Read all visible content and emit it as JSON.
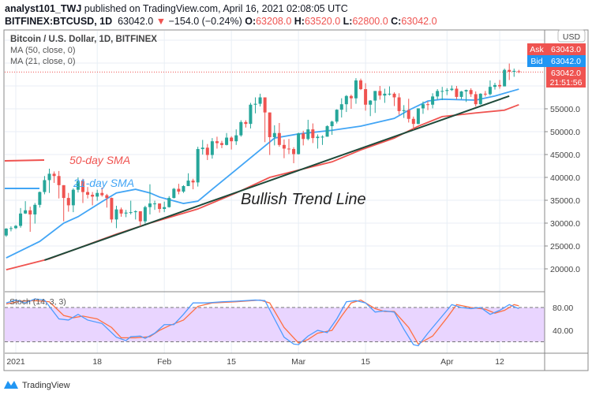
{
  "header": {
    "author": "analyst101_TWJ",
    "published": " published on TradingView.com, April 16, 2021 02:08:05 UTC",
    "symbol": "BITFINEX:BTCUSD, 1D",
    "last": "63042.0",
    "change": "−154.0 (−0.24%)",
    "o_label": "O:",
    "o": "63208.0",
    "h_label": "H:",
    "h": "63520.0",
    "l_label": "L:",
    "l": "62800.0",
    "c_label": "C:",
    "c": "63042.0"
  },
  "legend": {
    "title": "Bitcoin / U.S. Dollar, 1D, BITFINEX",
    "ma50": "MA (50, close, 0)",
    "ma21": "MA (21, close, 0)"
  },
  "annotations": {
    "sma50": "50-day SMA",
    "sma21": "21-day SMA",
    "trend": "Bullish Trend Line"
  },
  "price_axis": {
    "currency": "USD",
    "ticks": [
      "20000.0",
      "25000.0",
      "30000.0",
      "35000.0",
      "40000.0",
      "45000.0",
      "50000.0",
      "55000.0"
    ],
    "ask_label": "Ask",
    "ask": "63043.0",
    "bid_label": "Bid",
    "bid": "63042.0",
    "last": "63042.0",
    "countdown": "21:51:56"
  },
  "time_axis": {
    "ticks": [
      "2021",
      "18",
      "Feb",
      "15",
      "Mar",
      "15",
      "Apr",
      "12"
    ]
  },
  "stoch": {
    "label": "Stoch (14, 3, 3)",
    "ticks": [
      "80.00",
      "40.00"
    ],
    "upper": 80,
    "lower": 20
  },
  "footer": {
    "brand": "TradingView"
  },
  "colors": {
    "up": "#26a69a",
    "down": "#ef5350",
    "ma21": "#42a5f5",
    "ma50": "#ef5350",
    "trend": "#1e4a3a",
    "stoch_k": "#4c9bff",
    "stoch_d": "#ff7043",
    "stoch_band": "#e9d5ff"
  },
  "chart_data": {
    "type": "candlestick",
    "candles": [
      [
        "2020-12-30",
        27300,
        28900,
        27000,
        28800
      ],
      [
        "2020-12-31",
        28800,
        29300,
        28200,
        28900
      ],
      [
        "2021-01-01",
        28900,
        29600,
        28700,
        29400
      ],
      [
        "2021-01-02",
        29400,
        33300,
        29000,
        32100
      ],
      [
        "2021-01-03",
        32100,
        34800,
        32000,
        32800
      ],
      [
        "2021-01-04",
        32800,
        33600,
        28100,
        31900
      ],
      [
        "2021-01-05",
        31900,
        34400,
        29900,
        34000
      ],
      [
        "2021-01-06",
        34000,
        36900,
        33400,
        36800
      ],
      [
        "2021-01-07",
        36800,
        40300,
        36300,
        39400
      ],
      [
        "2021-01-08",
        39400,
        41900,
        36600,
        40800
      ],
      [
        "2021-01-09",
        40800,
        41300,
        38800,
        40300
      ],
      [
        "2021-01-10",
        40300,
        41400,
        35400,
        38300
      ],
      [
        "2021-01-11",
        38300,
        38300,
        30400,
        35500
      ],
      [
        "2021-01-12",
        35500,
        36600,
        32500,
        33900
      ],
      [
        "2021-01-13",
        33900,
        37600,
        32400,
        37300
      ],
      [
        "2021-01-14",
        37300,
        40000,
        36700,
        39200
      ],
      [
        "2021-01-15",
        39200,
        39700,
        34400,
        36800
      ],
      [
        "2021-01-16",
        36800,
        37900,
        35400,
        36200
      ],
      [
        "2021-01-17",
        36200,
        36800,
        33900,
        35800
      ],
      [
        "2021-01-18",
        35800,
        37300,
        34900,
        36600
      ],
      [
        "2021-01-19",
        36600,
        37800,
        35800,
        36100
      ],
      [
        "2021-01-20",
        36100,
        36400,
        33400,
        35500
      ],
      [
        "2021-01-21",
        35500,
        35600,
        30100,
        30800
      ],
      [
        "2021-01-22",
        30800,
        33800,
        28900,
        33000
      ],
      [
        "2021-01-23",
        33000,
        33400,
        31400,
        32100
      ],
      [
        "2021-01-24",
        32100,
        32900,
        31300,
        32300
      ],
      [
        "2021-01-25",
        32300,
        34900,
        31900,
        32400
      ],
      [
        "2021-01-26",
        32400,
        32800,
        30800,
        32600
      ],
      [
        "2021-01-27",
        32600,
        32600,
        29300,
        30400
      ],
      [
        "2021-01-28",
        30400,
        33800,
        29900,
        33500
      ],
      [
        "2021-01-29",
        33500,
        38500,
        31900,
        34300
      ],
      [
        "2021-01-30",
        34300,
        34900,
        32900,
        34300
      ],
      [
        "2021-01-31",
        34300,
        34300,
        32300,
        33100
      ],
      [
        "2021-02-01",
        33100,
        34700,
        32400,
        33500
      ],
      [
        "2021-02-02",
        33500,
        35900,
        33400,
        35500
      ],
      [
        "2021-02-03",
        35500,
        37700,
        35400,
        37500
      ],
      [
        "2021-02-04",
        37500,
        38600,
        36300,
        36900
      ],
      [
        "2021-02-05",
        36900,
        38300,
        36600,
        38100
      ],
      [
        "2021-02-06",
        38100,
        40900,
        38100,
        39300
      ],
      [
        "2021-02-07",
        39300,
        39700,
        37400,
        38900
      ],
      [
        "2021-02-08",
        38900,
        46700,
        38000,
        46200
      ],
      [
        "2021-02-09",
        46200,
        48200,
        45000,
        46500
      ],
      [
        "2021-02-10",
        46500,
        47300,
        43800,
        44900
      ],
      [
        "2021-02-11",
        44900,
        48600,
        44100,
        47900
      ],
      [
        "2021-02-12",
        47900,
        48900,
        46300,
        47500
      ],
      [
        "2021-02-13",
        47500,
        48000,
        46400,
        47100
      ],
      [
        "2021-02-14",
        47100,
        49700,
        47000,
        48700
      ],
      [
        "2021-02-15",
        48700,
        49000,
        46100,
        47900
      ],
      [
        "2021-02-16",
        47900,
        50500,
        47100,
        49200
      ],
      [
        "2021-02-17",
        49200,
        52500,
        48900,
        52100
      ],
      [
        "2021-02-18",
        52100,
        52500,
        50900,
        51700
      ],
      [
        "2021-02-19",
        51700,
        56300,
        50700,
        55900
      ],
      [
        "2021-02-20",
        55900,
        57500,
        54000,
        56100
      ],
      [
        "2021-02-21",
        56100,
        58300,
        55500,
        57500
      ],
      [
        "2021-02-22",
        57500,
        57500,
        47700,
        54200
      ],
      [
        "2021-02-23",
        54200,
        54200,
        44900,
        48800
      ],
      [
        "2021-02-24",
        48800,
        51400,
        47000,
        49700
      ],
      [
        "2021-02-25",
        49700,
        51900,
        46700,
        47100
      ],
      [
        "2021-02-26",
        47100,
        48300,
        44200,
        46300
      ],
      [
        "2021-02-27",
        46300,
        48400,
        45100,
        46200
      ],
      [
        "2021-02-28",
        46200,
        46600,
        43100,
        45100
      ],
      [
        "2021-03-01",
        45100,
        49800,
        45000,
        49600
      ],
      [
        "2021-03-02",
        49600,
        50200,
        47000,
        48400
      ],
      [
        "2021-03-03",
        48400,
        52600,
        48100,
        50500
      ],
      [
        "2021-03-04",
        50500,
        51800,
        47500,
        48600
      ],
      [
        "2021-03-05",
        48600,
        49400,
        46300,
        48900
      ],
      [
        "2021-03-06",
        48900,
        49200,
        47100,
        48900
      ],
      [
        "2021-03-07",
        48900,
        51400,
        48900,
        51200
      ],
      [
        "2021-03-08",
        51200,
        52400,
        49300,
        52200
      ],
      [
        "2021-03-09",
        52200,
        54900,
        51800,
        54800
      ],
      [
        "2021-03-10",
        54800,
        57300,
        53100,
        56000
      ],
      [
        "2021-03-11",
        56000,
        58000,
        54300,
        57800
      ],
      [
        "2021-03-12",
        57800,
        58100,
        55000,
        57300
      ],
      [
        "2021-03-13",
        57300,
        61700,
        56100,
        61200
      ],
      [
        "2021-03-14",
        61200,
        61600,
        59100,
        59300
      ],
      [
        "2021-03-15",
        59300,
        60600,
        54600,
        55900
      ],
      [
        "2021-03-16",
        55900,
        56900,
        53400,
        56800
      ],
      [
        "2021-03-17",
        56800,
        58900,
        54100,
        58900
      ],
      [
        "2021-03-18",
        58900,
        60000,
        57000,
        57900
      ],
      [
        "2021-03-19",
        57900,
        59400,
        56300,
        58300
      ],
      [
        "2021-03-20",
        58300,
        59900,
        57900,
        58300
      ],
      [
        "2021-03-21",
        58300,
        58600,
        55600,
        57500
      ],
      [
        "2021-03-22",
        57500,
        58400,
        53700,
        54500
      ],
      [
        "2021-03-23",
        54500,
        55800,
        53000,
        54700
      ],
      [
        "2021-03-24",
        54700,
        57200,
        52000,
        52800
      ],
      [
        "2021-03-25",
        52800,
        53300,
        50400,
        51700
      ],
      [
        "2021-03-26",
        51700,
        55100,
        51600,
        55100
      ],
      [
        "2021-03-27",
        55100,
        56600,
        53900,
        56000
      ],
      [
        "2021-03-28",
        56000,
        56600,
        54700,
        55900
      ],
      [
        "2021-03-29",
        55900,
        58400,
        55100,
        57700
      ],
      [
        "2021-03-30",
        57700,
        59300,
        57000,
        58900
      ],
      [
        "2021-03-31",
        58900,
        59800,
        56900,
        58900
      ],
      [
        "2021-04-01",
        58900,
        59500,
        58000,
        59100
      ],
      [
        "2021-04-02",
        59100,
        60100,
        58900,
        59400
      ],
      [
        "2021-04-03",
        59400,
        60000,
        57100,
        57600
      ],
      [
        "2021-04-04",
        57600,
        58900,
        57100,
        58800
      ],
      [
        "2021-04-05",
        58800,
        59200,
        56500,
        59100
      ],
      [
        "2021-04-06",
        59100,
        59500,
        57600,
        58200
      ],
      [
        "2021-04-07",
        58200,
        58800,
        55500,
        56000
      ],
      [
        "2021-04-08",
        56000,
        58400,
        55900,
        58300
      ],
      [
        "2021-04-09",
        58300,
        58900,
        57700,
        58200
      ],
      [
        "2021-04-10",
        58200,
        61200,
        57900,
        59800
      ],
      [
        "2021-04-11",
        59800,
        60700,
        59200,
        60200
      ],
      [
        "2021-04-12",
        60200,
        61300,
        59400,
        59900
      ],
      [
        "2021-04-13",
        59900,
        63800,
        59900,
        63500
      ],
      [
        "2021-04-14",
        63500,
        64900,
        61300,
        63100
      ],
      [
        "2021-04-15",
        63100,
        63800,
        62000,
        63300
      ],
      [
        "2021-04-16",
        63208,
        63520,
        62800,
        63042
      ]
    ],
    "ma21": [
      [
        "2020-12-30",
        22400
      ],
      [
        "2021-01-06",
        26000
      ],
      [
        "2021-01-11",
        30000
      ],
      [
        "2021-01-14",
        31400
      ],
      [
        "2021-01-19",
        34700
      ],
      [
        "2021-01-22",
        36600
      ],
      [
        "2021-01-26",
        37400
      ],
      [
        "2021-01-29",
        36600
      ],
      [
        "2021-01-31",
        35700
      ],
      [
        "2021-02-05",
        34300
      ],
      [
        "2021-02-08",
        34800
      ],
      [
        "2021-02-11",
        37400
      ],
      [
        "2021-02-16",
        41700
      ],
      [
        "2021-02-21",
        46000
      ],
      [
        "2021-02-24",
        48600
      ],
      [
        "2021-03-01",
        49500
      ],
      [
        "2021-03-08",
        50300
      ],
      [
        "2021-03-14",
        51200
      ],
      [
        "2021-03-21",
        52900
      ],
      [
        "2021-03-24",
        54700
      ],
      [
        "2021-03-28",
        56700
      ],
      [
        "2021-03-31",
        57100
      ],
      [
        "2021-04-07",
        56900
      ],
      [
        "2021-04-11",
        57800
      ],
      [
        "2021-04-16",
        59300
      ]
    ],
    "ma50": [
      [
        "2020-12-30",
        19800
      ],
      [
        "2021-01-08",
        22200
      ],
      [
        "2021-01-14",
        24500
      ],
      [
        "2021-01-22",
        27600
      ],
      [
        "2021-01-29",
        30000
      ],
      [
        "2021-02-08",
        33100
      ],
      [
        "2021-02-16",
        36600
      ],
      [
        "2021-02-23",
        40000
      ],
      [
        "2021-03-01",
        41600
      ],
      [
        "2021-03-08",
        43400
      ],
      [
        "2021-03-14",
        46000
      ],
      [
        "2021-03-21",
        48600
      ],
      [
        "2021-03-26",
        51200
      ],
      [
        "2021-03-31",
        53300
      ],
      [
        "2021-04-07",
        54100
      ],
      [
        "2021-04-13",
        54700
      ],
      [
        "2021-04-16",
        55900
      ]
    ],
    "trend_line": [
      [
        "2021-01-07",
        21900
      ],
      [
        "2021-04-14",
        57800
      ]
    ],
    "stoch_k": [
      [
        "2020-12-30",
        88
      ],
      [
        "2021-01-01",
        93
      ],
      [
        "2021-01-03",
        88
      ],
      [
        "2021-01-05",
        95
      ],
      [
        "2021-01-07",
        93
      ],
      [
        "2021-01-10",
        60
      ],
      [
        "2021-01-12",
        58
      ],
      [
        "2021-01-14",
        68
      ],
      [
        "2021-01-16",
        58
      ],
      [
        "2021-01-19",
        52
      ],
      [
        "2021-01-22",
        28
      ],
      [
        "2021-01-24",
        22
      ],
      [
        "2021-01-25",
        29
      ],
      [
        "2021-01-27",
        30
      ],
      [
        "2021-01-28",
        26
      ],
      [
        "2021-01-30",
        35
      ],
      [
        "2021-02-01",
        50
      ],
      [
        "2021-02-03",
        50
      ],
      [
        "2021-02-05",
        68
      ],
      [
        "2021-02-07",
        88
      ],
      [
        "2021-02-10",
        88
      ],
      [
        "2021-02-13",
        90
      ],
      [
        "2021-02-16",
        91
      ],
      [
        "2021-02-20",
        93
      ],
      [
        "2021-02-22",
        92
      ],
      [
        "2021-02-24",
        60
      ],
      [
        "2021-02-26",
        28
      ],
      [
        "2021-02-28",
        16
      ],
      [
        "2021-03-01",
        15
      ],
      [
        "2021-03-03",
        30
      ],
      [
        "2021-03-05",
        40
      ],
      [
        "2021-03-07",
        36
      ],
      [
        "2021-03-09",
        60
      ],
      [
        "2021-03-11",
        90
      ],
      [
        "2021-03-13",
        92
      ],
      [
        "2021-03-15",
        88
      ],
      [
        "2021-03-17",
        72
      ],
      [
        "2021-03-19",
        74
      ],
      [
        "2021-03-21",
        72
      ],
      [
        "2021-03-23",
        42
      ],
      [
        "2021-03-25",
        15
      ],
      [
        "2021-03-26",
        13
      ],
      [
        "2021-03-28",
        35
      ],
      [
        "2021-03-31",
        65
      ],
      [
        "2021-04-02",
        85
      ],
      [
        "2021-04-04",
        80
      ],
      [
        "2021-04-06",
        78
      ],
      [
        "2021-04-08",
        80
      ],
      [
        "2021-04-10",
        68
      ],
      [
        "2021-04-12",
        75
      ],
      [
        "2021-04-14",
        85
      ],
      [
        "2021-04-16",
        78
      ]
    ],
    "stoch_d": [
      [
        "2020-12-30",
        86
      ],
      [
        "2021-01-02",
        91
      ],
      [
        "2021-01-05",
        92
      ],
      [
        "2021-01-08",
        90
      ],
      [
        "2021-01-11",
        66
      ],
      [
        "2021-01-13",
        62
      ],
      [
        "2021-01-15",
        65
      ],
      [
        "2021-01-18",
        60
      ],
      [
        "2021-01-21",
        45
      ],
      [
        "2021-01-23",
        27
      ],
      [
        "2021-01-26",
        27
      ],
      [
        "2021-01-29",
        29
      ],
      [
        "2021-01-31",
        40
      ],
      [
        "2021-02-02",
        48
      ],
      [
        "2021-02-05",
        58
      ],
      [
        "2021-02-08",
        82
      ],
      [
        "2021-02-11",
        88
      ],
      [
        "2021-02-16",
        90
      ],
      [
        "2021-02-21",
        93
      ],
      [
        "2021-02-23",
        88
      ],
      [
        "2021-02-26",
        45
      ],
      [
        "2021-03-01",
        18
      ],
      [
        "2021-03-03",
        24
      ],
      [
        "2021-03-05",
        35
      ],
      [
        "2021-03-08",
        40
      ],
      [
        "2021-03-10",
        65
      ],
      [
        "2021-03-12",
        88
      ],
      [
        "2021-03-14",
        93
      ],
      [
        "2021-03-17",
        78
      ],
      [
        "2021-03-19",
        73
      ],
      [
        "2021-03-21",
        73
      ],
      [
        "2021-03-24",
        45
      ],
      [
        "2021-03-26",
        16
      ],
      [
        "2021-03-29",
        30
      ],
      [
        "2021-04-01",
        62
      ],
      [
        "2021-04-03",
        85
      ],
      [
        "2021-04-06",
        80
      ],
      [
        "2021-04-09",
        77
      ],
      [
        "2021-04-11",
        70
      ],
      [
        "2021-04-13",
        75
      ],
      [
        "2021-04-15",
        85
      ],
      [
        "2021-04-16",
        83
      ]
    ],
    "ylim": [
      20000,
      70000
    ],
    "stoch_ylim": [
      0,
      100
    ],
    "grid": true,
    "last_price": 63042
  }
}
